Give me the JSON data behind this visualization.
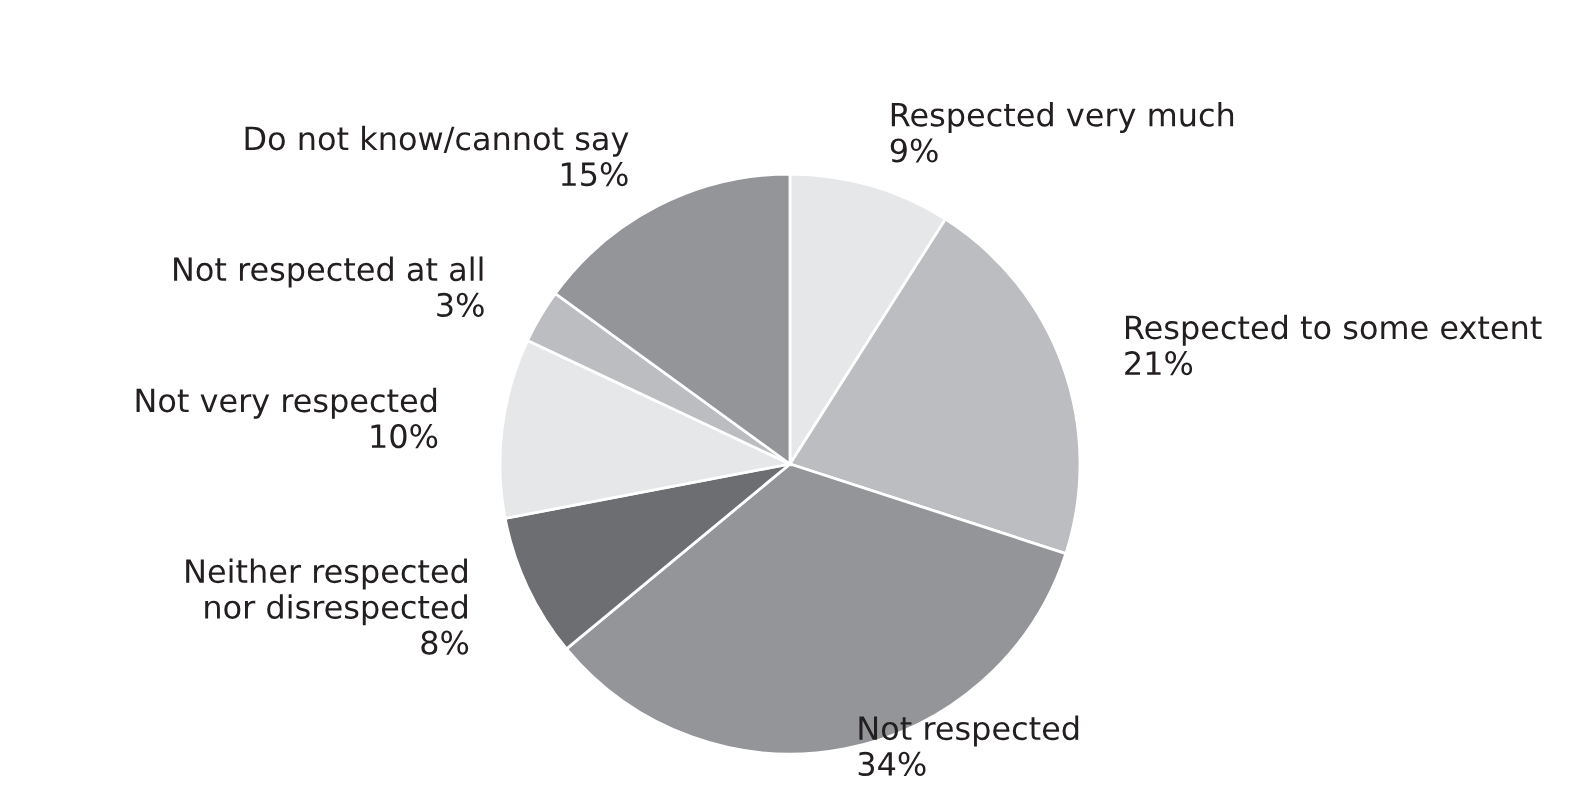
{
  "chart_data": {
    "type": "pie",
    "categories": [
      "Respected very much",
      "Respected to some extent",
      "Not respected",
      "Neither respected\nnor disrespected",
      "Not very respected",
      "Not respected at all",
      "Do not know/cannot say"
    ],
    "values": [
      9,
      21,
      34,
      8,
      10,
      3,
      15
    ],
    "value_labels": [
      "9%",
      "21%",
      "34%",
      "8%",
      "10%",
      "3%",
      "15%"
    ],
    "colors": [
      "#e6e7e8",
      "#bcbdc0",
      "#939598",
      "#6d6e71",
      "#e6e7e8",
      "#bcbdc0",
      "#939598"
    ]
  }
}
